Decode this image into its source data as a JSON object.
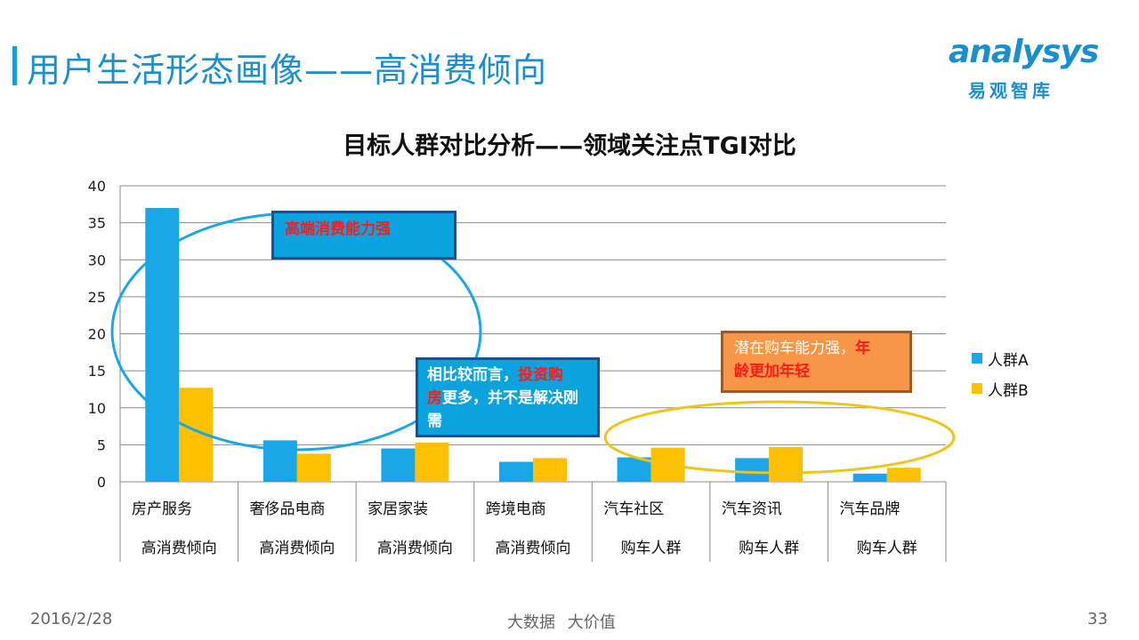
{
  "header": {
    "title": "用户生活形态画像——高消费倾向",
    "logo_text": "analysys",
    "logo_sub": "易观智库"
  },
  "chart_data": {
    "type": "bar",
    "title": "目标人群对比分析——领域关注点TGI对比",
    "categories": [
      "房产服务",
      "奢侈品电商",
      "家居家装",
      "跨境电商",
      "汽车社区",
      "汽车资讯",
      "汽车品牌"
    ],
    "groups": [
      "高消费倾向",
      "高消费倾向",
      "高消费倾向",
      "高消费倾向",
      "购车人群",
      "购车人群",
      "购车人群"
    ],
    "series": [
      {
        "name": "人群A",
        "color": "#1aa7e8",
        "values": [
          37.0,
          5.6,
          4.5,
          2.7,
          3.3,
          3.2,
          1.1
        ]
      },
      {
        "name": "人群B",
        "color": "#ffc000",
        "values": [
          12.7,
          3.8,
          5.3,
          3.2,
          4.6,
          4.7,
          1.9
        ]
      }
    ],
    "ylim": [
      0,
      40
    ],
    "yticks": [
      "0",
      "5",
      "10",
      "15",
      "20",
      "25",
      "30",
      "35",
      "40"
    ],
    "grid": true,
    "legend_position": "right"
  },
  "annotations": {
    "high_end": "高端消费能力强",
    "relative_prefix": "相比较而言，",
    "relative_red_1": "投资购",
    "relative_red_2": "房",
    "relative_suffix": "更多，并不是解决刚需",
    "car_prefix": "潜在购车能力强，",
    "car_red_1": "年",
    "car_red_2": "龄更加年轻"
  },
  "footer": {
    "date": "2016/2/28",
    "center": "大数据 大价值",
    "page": "33"
  }
}
